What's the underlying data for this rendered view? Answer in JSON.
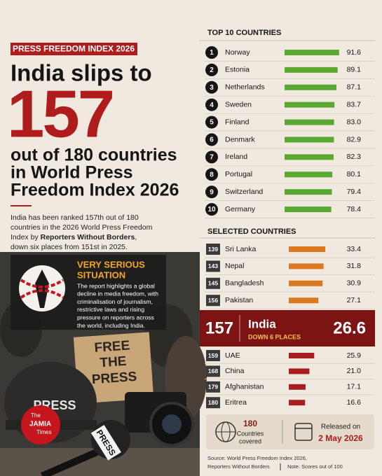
{
  "header": {
    "tag": "PRESS FREEDOM INDEX 2026",
    "headline_1": "India slips to",
    "rank": 157,
    "headline_lines": [
      "out of 180 countries",
      "in World Press",
      "Freedom Index 2026"
    ]
  },
  "summary": {
    "line_1": "India has been ranked 157th out of 180",
    "line_2": "countries in the 2026 World Press Freedom",
    "line_3_start": "Index by",
    "line_3_bold": "Reporters Without Borders",
    "line_3_end": ",",
    "line_4": "down six places from 151st in 2025."
  },
  "alert": {
    "title_lines": [
      "VERY SERIOUS",
      "SITUATION"
    ],
    "text_lines": [
      "The report highlights a global",
      "decline in media freedom, with",
      "criminalisation of journalism,",
      "restrictive laws and rising",
      "pressure on reporters across",
      "the world, including India."
    ]
  },
  "photo": {
    "sign_lines": [
      "FREE",
      "THE",
      "PRESS"
    ],
    "helmet": "PRESS",
    "mic": "PRESS",
    "logo_lines": [
      "The",
      "JAMIA",
      "Times"
    ]
  },
  "chart_data": [
    {
      "type": "bar",
      "title": "TOP 10 COUNTRIES",
      "ranks": [
        1,
        2,
        3,
        4,
        5,
        6,
        7,
        8,
        9,
        10
      ],
      "categories": [
        "Norway",
        "Estonia",
        "Netherlands",
        "Sweden",
        "Finland",
        "Denmark",
        "Ireland",
        "Portugal",
        "Switzerland",
        "Germany"
      ],
      "values": [
        91.6,
        89.1,
        87.1,
        83.7,
        83.0,
        82.9,
        82.3,
        80.1,
        79.4,
        78.4
      ],
      "value_labels": [
        "91.6",
        "89.1",
        "87.1",
        "83.7",
        "83.0",
        "82.9",
        "82.3",
        "80.1",
        "79.4",
        "78.4"
      ],
      "color": "#5aa832"
    },
    {
      "type": "bar",
      "title": "SELECTED COUNTRIES",
      "ranks": [
        139,
        143,
        145,
        156
      ],
      "categories": [
        "Sri Lanka",
        "Nepal",
        "Bangladesh",
        "Pakistan"
      ],
      "values": [
        33.4,
        31.8,
        30.9,
        27.1
      ],
      "color": "#d9781f"
    },
    {
      "type": "bar",
      "ranks": [
        159,
        168,
        179,
        180
      ],
      "categories": [
        "UAE",
        "China",
        "Afghanistan",
        "Eritrea"
      ],
      "values": [
        25.9,
        21.0,
        17.1,
        16.6
      ],
      "value_labels": [
        "25.9",
        "21.0",
        "17.1",
        "16.6"
      ],
      "color": "#a81e1e"
    }
  ],
  "india": {
    "rank": 157,
    "name": "India",
    "change": "DOWN 6 PLACES",
    "score": 26.6
  },
  "stats": {
    "countries": 180,
    "countries_label_lines": [
      "Countries",
      "covered"
    ],
    "released_label": "Released on",
    "released_date": "2 May 2026"
  },
  "source": {
    "line_1": "Source: World Press Freedom Index 2026,",
    "line_2": "Reporters Without Borders",
    "note": "Note: Scores out of 100"
  }
}
